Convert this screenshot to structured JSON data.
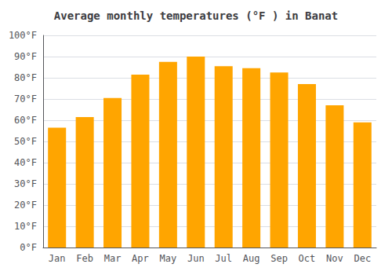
{
  "chart_data": {
    "type": "bar",
    "title": "Average monthly temperatures (°F ) in Banat",
    "categories": [
      "Jan",
      "Feb",
      "Mar",
      "Apr",
      "May",
      "Jun",
      "Jul",
      "Aug",
      "Sep",
      "Oct",
      "Nov",
      "Dec"
    ],
    "values": [
      56.5,
      61.5,
      70.5,
      81.5,
      87.5,
      90.0,
      85.5,
      84.5,
      82.5,
      77.0,
      67.0,
      59.0
    ],
    "color": "#FFA500",
    "ylim": [
      0,
      100
    ],
    "yticks": [
      {
        "value": 0,
        "label": "0°F"
      },
      {
        "value": 10,
        "label": "10°F"
      },
      {
        "value": 20,
        "label": "20°F"
      },
      {
        "value": 30,
        "label": "30°F"
      },
      {
        "value": 40,
        "label": "40°F"
      },
      {
        "value": 50,
        "label": "50°F"
      },
      {
        "value": 60,
        "label": "60°F"
      },
      {
        "value": 70,
        "label": "70°F"
      },
      {
        "value": 80,
        "label": "80°F"
      },
      {
        "value": 90,
        "label": "90°F"
      },
      {
        "value": 100,
        "label": "100°F"
      }
    ],
    "grid": true
  }
}
